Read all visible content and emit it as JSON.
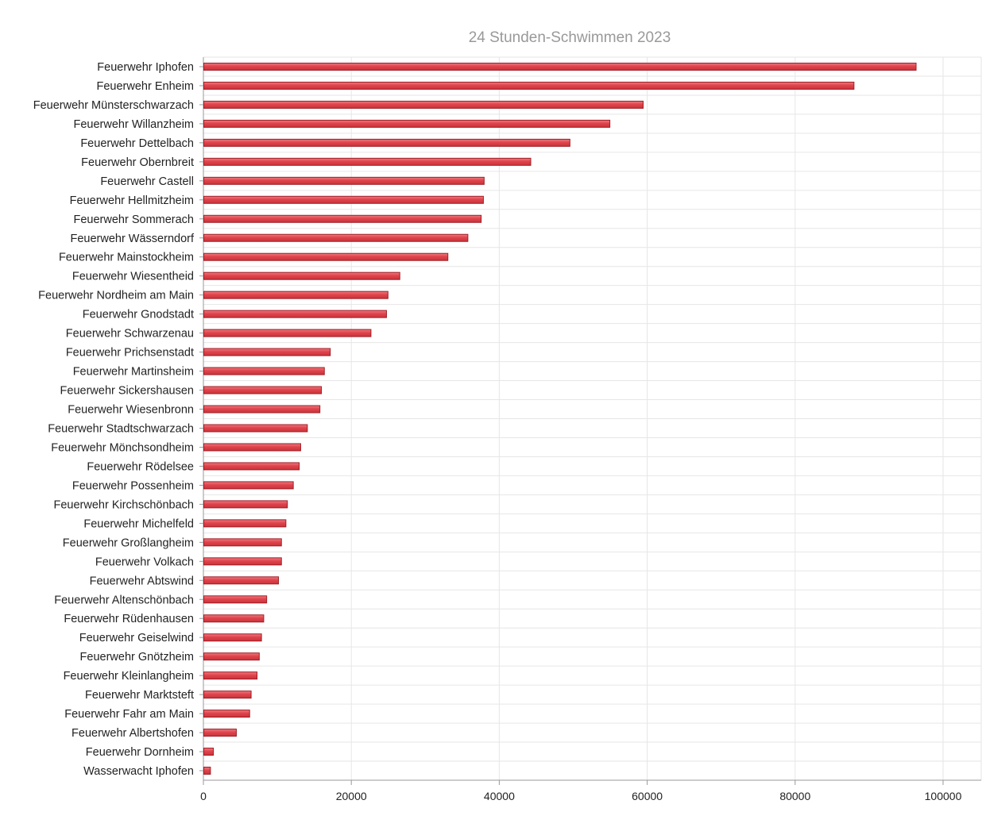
{
  "chart_data": {
    "type": "bar",
    "orientation": "horizontal",
    "title": "24 Stunden-Schwimmen 2023",
    "xlabel": "",
    "ylabel": "",
    "xlim": [
      0,
      105000
    ],
    "x_ticks": [
      "0",
      "20000",
      "40000",
      "60000",
      "80000",
      "100000"
    ],
    "x_tick_values": [
      0,
      20000,
      40000,
      60000,
      80000,
      100000
    ],
    "grid": true,
    "colors": {
      "bar_fill": "#e0444c",
      "bar_stroke": "#9e1f27",
      "grid": "#e6e6e6",
      "axis": "#999999"
    },
    "categories": [
      "Feuerwehr Iphofen",
      "Feuerwehr Enheim",
      "Feuerwehr Münsterschwarzach",
      "Feuerwehr Willanzheim",
      "Feuerwehr Dettelbach",
      "Feuerwehr Obernbreit",
      "Feuerwehr Castell",
      "Feuerwehr Hellmitzheim",
      "Feuerwehr Sommerach",
      "Feuerwehr Wässerndorf",
      "Feuerwehr Mainstockheim",
      "Feuerwehr Wiesentheid",
      "Feuerwehr Nordheim am Main",
      "Feuerwehr Gnodstadt",
      "Feuerwehr Schwarzenau",
      "Feuerwehr Prichsenstadt",
      "Feuerwehr Martinsheim",
      "Feuerwehr Sickershausen",
      "Feuerwehr Wiesenbronn",
      "Feuerwehr Stadtschwarzach",
      "Feuerwehr Mönchsondheim",
      "Feuerwehr Rödelsee",
      "Feuerwehr Possenheim",
      "Feuerwehr Kirchschönbach",
      "Feuerwehr Michelfeld",
      "Feuerwehr Großlangheim",
      "Feuerwehr Volkach",
      "Feuerwehr Abtswind",
      "Feuerwehr Altenschönbach",
      "Feuerwehr Rüdenhausen",
      "Feuerwehr Geiselwind",
      "Feuerwehr Gnötzheim",
      "Feuerwehr Kleinlangheim",
      "Feuerwehr Marktsteft",
      "Feuerwehr Fahr am Main",
      "Feuerwehr Albertshofen",
      "Feuerwehr Dornheim",
      "Wasserwacht Iphofen"
    ],
    "values": [
      96300,
      87900,
      59400,
      54900,
      49500,
      44200,
      37900,
      37800,
      37500,
      35700,
      33000,
      26500,
      24900,
      24700,
      22600,
      17100,
      16300,
      15900,
      15700,
      14000,
      13100,
      12900,
      12100,
      11300,
      11100,
      10500,
      10500,
      10100,
      8500,
      8100,
      7800,
      7500,
      7200,
      6400,
      6200,
      4400,
      1300,
      900
    ]
  }
}
